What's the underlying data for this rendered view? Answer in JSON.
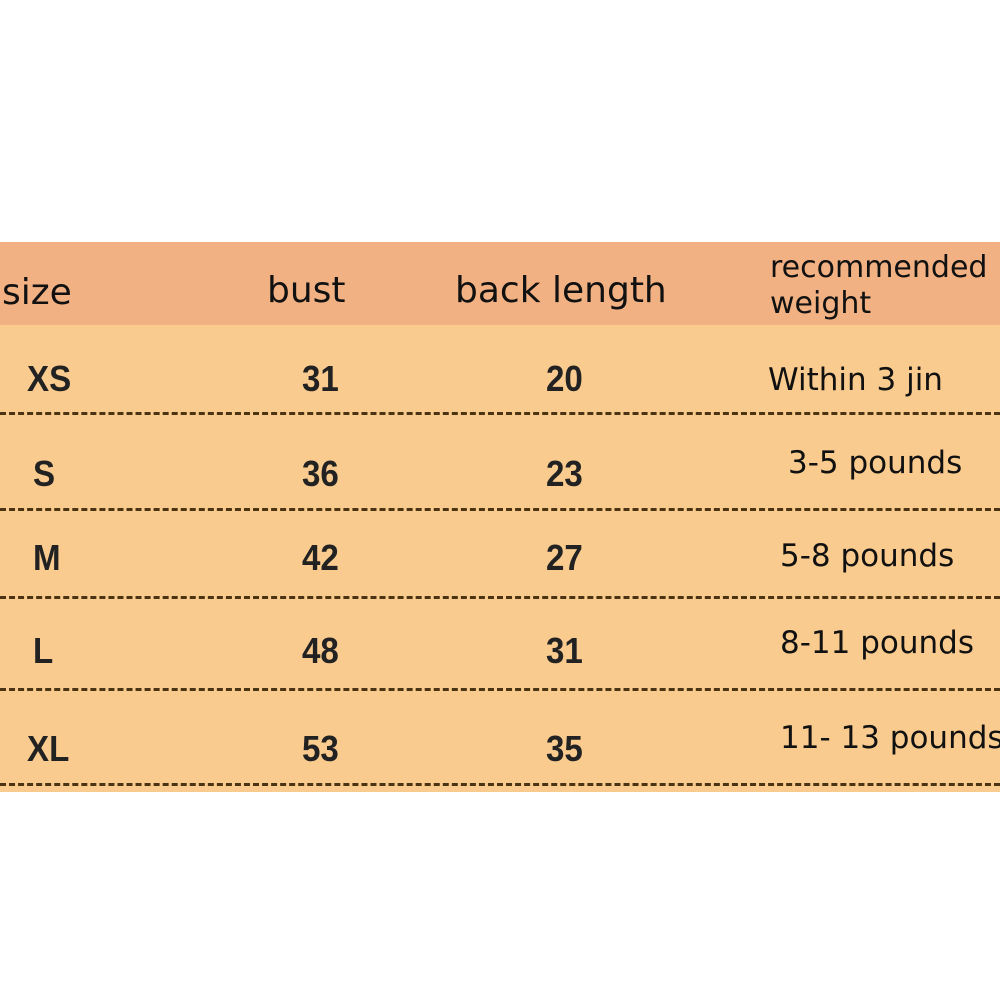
{
  "table": {
    "headers": {
      "size": "size",
      "bust": "bust",
      "back_length": "back length",
      "weight": "recommended weight"
    },
    "rows": [
      {
        "size": "XS",
        "bust": "31",
        "back_length": "20",
        "weight": "Within 3 jin"
      },
      {
        "size": "S",
        "bust": "36",
        "back_length": "23",
        "weight": "3-5 pounds"
      },
      {
        "size": "M",
        "bust": "42",
        "back_length": "27",
        "weight": "5-8 pounds"
      },
      {
        "size": "L",
        "bust": "48",
        "back_length": "31",
        "weight": "8-11 pounds"
      },
      {
        "size": "XL",
        "bust": "53",
        "back_length": "35",
        "weight": "11- 13 pounds"
      }
    ]
  },
  "colors": {
    "header": "#F2B183",
    "body": "#FACB8E",
    "divider": "#4a3414"
  }
}
